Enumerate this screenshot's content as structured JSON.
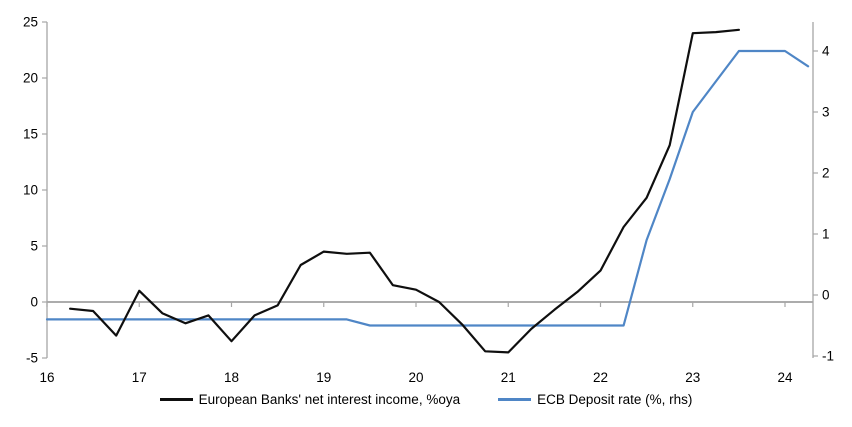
{
  "chart_data": {
    "type": "line",
    "title": "",
    "x_axis": {
      "min": 16,
      "max": 24.3,
      "ticks": [
        16,
        17,
        18,
        19,
        20,
        21,
        22,
        23,
        24
      ]
    },
    "left_axis": {
      "min": -5,
      "max": 25,
      "ticks": [
        25,
        20,
        15,
        10,
        5,
        0,
        -5
      ]
    },
    "right_axis": {
      "min": -1,
      "max": 4.5,
      "ticks": [
        4,
        3,
        2,
        1,
        0,
        -1
      ]
    },
    "grid": "horizontal zero line only",
    "legend_position": "bottom-center",
    "series": [
      {
        "name": "European Banks' net interest income, %oya",
        "axis": "left",
        "color": "#0f0f0f",
        "x": [
          16.25,
          16.5,
          16.75,
          17,
          17.25,
          17.5,
          17.75,
          18,
          18.25,
          18.5,
          18.75,
          19,
          19.25,
          19.5,
          19.75,
          20,
          20.25,
          20.5,
          20.75,
          21,
          21.25,
          21.5,
          21.75,
          22,
          22.25,
          22.5,
          22.75,
          23,
          23.25,
          23.5
        ],
        "values": [
          -0.6,
          -0.8,
          -3.0,
          1.0,
          -1.0,
          -1.9,
          -1.2,
          -3.5,
          -1.2,
          -0.3,
          3.3,
          4.5,
          4.3,
          4.4,
          1.5,
          1.1,
          0.0,
          -2.0,
          -4.4,
          -4.5,
          -2.4,
          -0.7,
          0.9,
          2.8,
          6.7,
          9.3,
          14.0,
          24.0,
          24.1,
          24.3
        ]
      },
      {
        "name": "ECB Deposit rate (%, rhs)",
        "axis": "right",
        "color": "#4f86c6",
        "x": [
          16,
          16.25,
          16.5,
          16.75,
          17,
          17.25,
          17.5,
          17.75,
          18,
          18.25,
          18.5,
          18.75,
          19,
          19.25,
          19.5,
          19.75,
          20,
          20.25,
          20.5,
          20.75,
          21,
          21.25,
          21.5,
          21.75,
          22,
          22.25,
          22.5,
          22.75,
          23,
          23.25,
          23.5,
          23.75,
          24,
          24.25
        ],
        "values": [
          -0.4,
          -0.4,
          -0.4,
          -0.4,
          -0.4,
          -0.4,
          -0.4,
          -0.4,
          -0.4,
          -0.4,
          -0.4,
          -0.4,
          -0.4,
          -0.4,
          -0.5,
          -0.5,
          -0.5,
          -0.5,
          -0.5,
          -0.5,
          -0.5,
          -0.5,
          -0.5,
          -0.5,
          -0.5,
          -0.5,
          0.9,
          1.9,
          3.0,
          3.5,
          4.0,
          4.0,
          4.0,
          3.75
        ]
      }
    ]
  },
  "colors": {
    "axis": "#a6a6a6",
    "zero_line": "#a0a0a0",
    "text": "#000000",
    "background": "#ffffff"
  }
}
